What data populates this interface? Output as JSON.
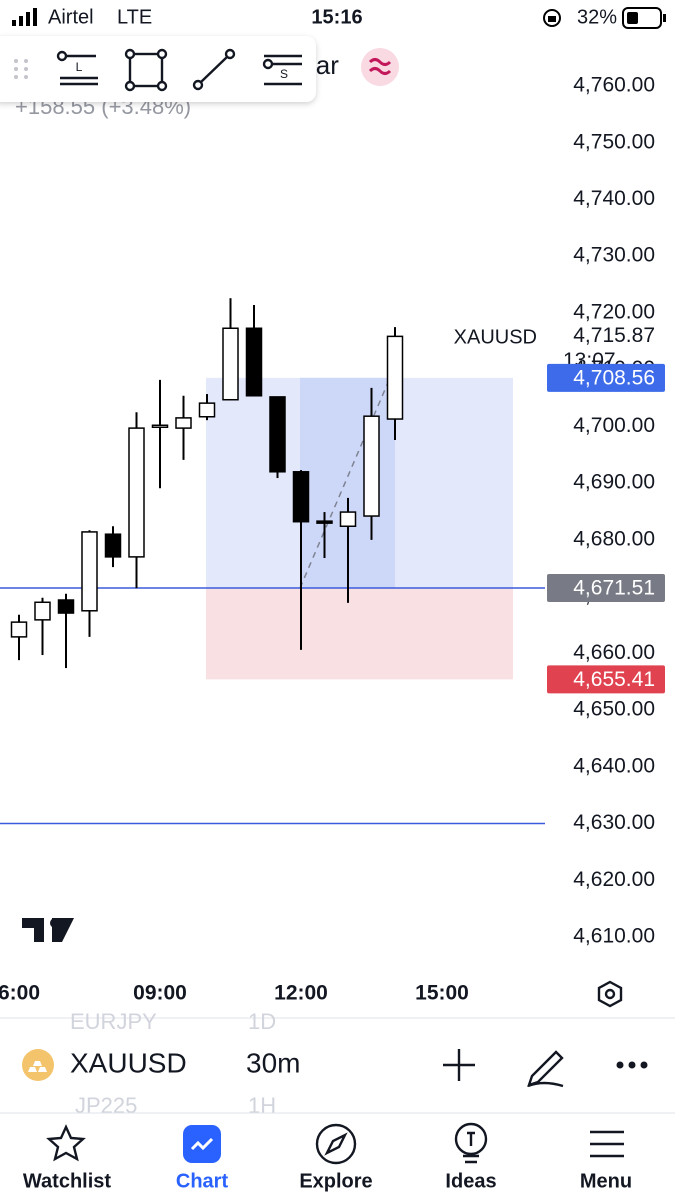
{
  "status_bar": {
    "carrier": "Airtel",
    "network": "LTE",
    "time": "15:16",
    "battery": "32%"
  },
  "header": {
    "title_fragment": "lar",
    "change": "+158.55 (+3.48%)"
  },
  "toolbar": {
    "line_tool_letter": "L",
    "ray_tool_letter": "S"
  },
  "chart_data": {
    "type": "candlestick",
    "symbol": "XAUUSD",
    "countdown": "13:07",
    "up_color": "#ffffff",
    "down_color": "#000000",
    "xtick_labels": [
      "6:00",
      "09:00",
      "12:00",
      "15:00"
    ],
    "open": [
      4662.9,
      4665.9,
      4669.4,
      4667.5,
      4681.0,
      4677.0,
      4699.9,
      4699.7,
      4701.7,
      4704.7,
      4717.3,
      4705.2,
      4692.0,
      4683.3,
      4682.4,
      4684.2,
      4701.3
    ],
    "high": [
      4666.8,
      4669.8,
      4670.5,
      4681.7,
      4682.4,
      4702.5,
      4708.2,
      4705.4,
      4705.7,
      4722.6,
      4721.4,
      4705.2,
      4692.3,
      4684.9,
      4687.4,
      4706.8,
      4717.5
    ],
    "low": [
      4658.8,
      4659.7,
      4657.4,
      4662.9,
      4675.2,
      4671.5,
      4689.1,
      4694.1,
      4701.1,
      4704.7,
      4705.4,
      4690.9,
      4660.6,
      4676.8,
      4668.9,
      4680.0,
      4697.6
    ],
    "close": [
      4665.5,
      4669.0,
      4667.1,
      4681.4,
      4677.0,
      4699.7,
      4700.2,
      4701.5,
      4704.1,
      4717.3,
      4705.4,
      4692.0,
      4683.2,
      4683.0,
      4684.9,
      4701.8,
      4715.87
    ],
    "ylim": [
      4610,
      4760
    ],
    "yticks": [
      {
        "value": 4610,
        "label": "4,610.00"
      },
      {
        "value": 4620,
        "label": "4,620.00"
      },
      {
        "value": 4630,
        "label": "4,630.00"
      },
      {
        "value": 4640,
        "label": "4,640.00"
      },
      {
        "value": 4650,
        "label": "4,650.00"
      },
      {
        "value": 4660,
        "label": "4,660.00"
      },
      {
        "value": 4670,
        "label": "4,670.00"
      },
      {
        "value": 4680,
        "label": "4,680.00"
      },
      {
        "value": 4690,
        "label": "4,690.00"
      },
      {
        "value": 4700,
        "label": "4,700.00"
      },
      {
        "value": 4710,
        "label": "4,710.00"
      },
      {
        "value": 4720,
        "label": "4,720.00"
      },
      {
        "value": 4730,
        "label": "4,730.00"
      },
      {
        "value": 4740,
        "label": "4,740.00"
      },
      {
        "value": 4750,
        "label": "4,750.00"
      },
      {
        "value": 4760,
        "label": "4,760.00"
      }
    ],
    "current_price": {
      "value": 4715.87,
      "label": "4,715.87"
    },
    "position": {
      "target": {
        "value": 4708.56,
        "label": "4,708.56",
        "color": "#3d6bea"
      },
      "entry": {
        "value": 4671.51,
        "label": "4,671.51",
        "color": "#787b86"
      },
      "stop": {
        "value": 4655.41,
        "label": "4,655.41",
        "color": "#e0434f"
      }
    },
    "horizontal_lines": [
      4671.51,
      4630
    ]
  },
  "symbol_bar": {
    "symbol": "XAUUSD",
    "interval": "30m",
    "prev_symbol": "EURJPY",
    "prev_interval": "1D",
    "next_symbol": "JP225",
    "next_interval": "1H"
  },
  "tabs": [
    "Watchlist",
    "Chart",
    "Explore",
    "Ideas",
    "Menu"
  ],
  "active_tab": "Chart"
}
